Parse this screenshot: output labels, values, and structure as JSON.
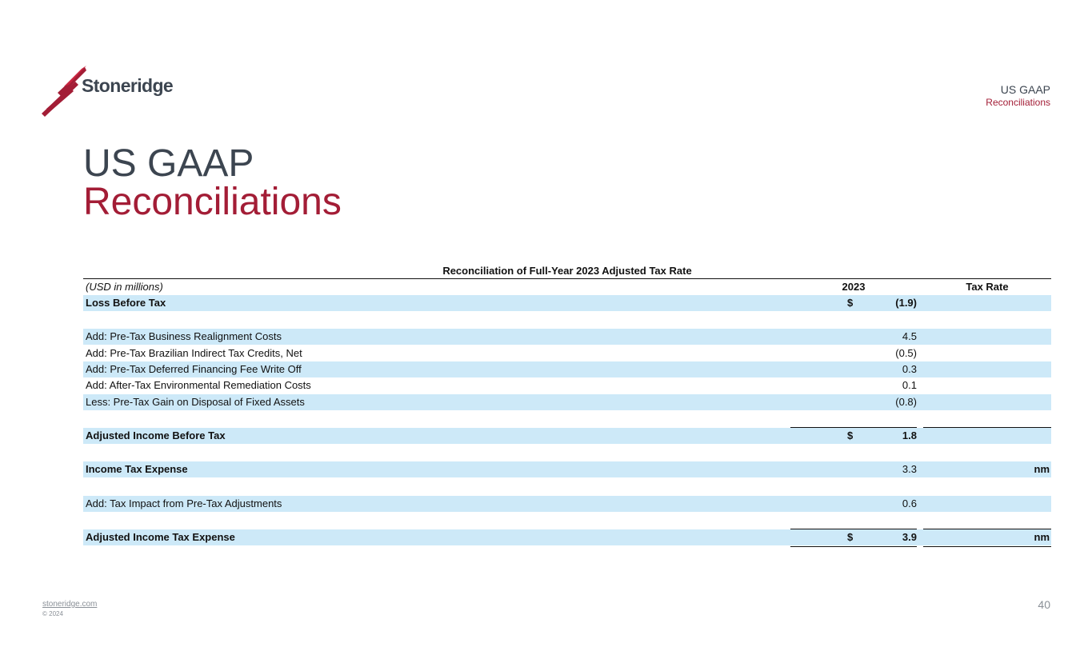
{
  "brand": {
    "name": "Stoneridge",
    "accent_color": "#a31d36",
    "dark_color": "#3c4550",
    "logo_icon": "stoneridge-s-mark"
  },
  "header": {
    "line1": "US GAAP",
    "line2": "Reconciliations"
  },
  "title": {
    "line1": "US GAAP",
    "line2": "Reconciliations"
  },
  "table": {
    "title": "Reconciliation of Full-Year 2023 Adjusted Tax Rate",
    "units": "(USD in millions)",
    "col_year": "2023",
    "col_rate": "Tax Rate",
    "row_color": "#cde9f8",
    "rows": [
      {
        "label": "Loss Before Tax",
        "dollar": "$",
        "amount": "(1.9)",
        "rate": ""
      },
      {
        "label": "Add: Pre-Tax Business Realignment Costs",
        "dollar": "",
        "amount": "4.5",
        "rate": ""
      },
      {
        "label": "Add: Pre-Tax Brazilian Indirect Tax Credits, Net",
        "dollar": "",
        "amount": "(0.5)",
        "rate": ""
      },
      {
        "label": "Add: Pre-Tax Deferred Financing Fee Write Off",
        "dollar": "",
        "amount": "0.3",
        "rate": ""
      },
      {
        "label": "Add: After-Tax Environmental Remediation Costs",
        "dollar": "",
        "amount": "0.1",
        "rate": ""
      },
      {
        "label": "Less: Pre-Tax Gain on Disposal of Fixed Assets",
        "dollar": "",
        "amount": "(0.8)",
        "rate": ""
      },
      {
        "label": "Adjusted Income Before Tax",
        "dollar": "$",
        "amount": "1.8",
        "rate": ""
      },
      {
        "label": "Income Tax Expense",
        "dollar": "",
        "amount": "3.3",
        "rate": "nm"
      },
      {
        "label": "Add: Tax Impact from Pre-Tax Adjustments",
        "dollar": "",
        "amount": "0.6",
        "rate": ""
      },
      {
        "label": "Adjusted Income Tax Expense",
        "dollar": "$",
        "amount": "3.9",
        "rate": "nm"
      }
    ]
  },
  "footer": {
    "site": "stoneridge.com",
    "copyright": "© 2024",
    "page_number": "40"
  }
}
